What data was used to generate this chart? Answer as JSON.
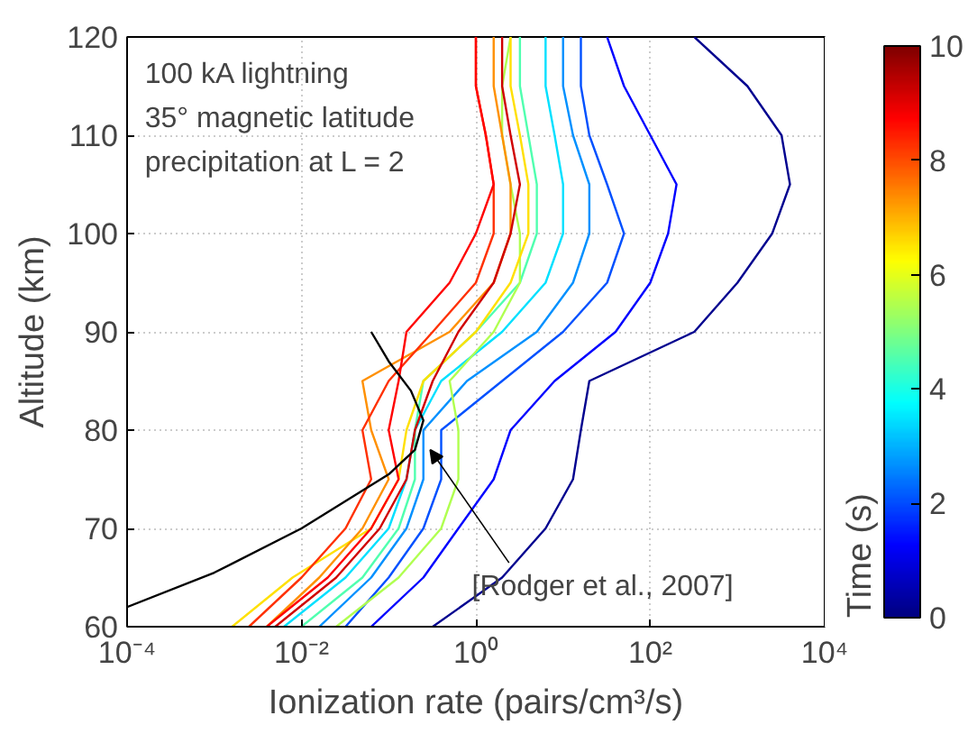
{
  "chart_data": {
    "type": "line",
    "xlabel": "Ionization rate (pairs/cm³/s)",
    "ylabel": "Altitude (km)",
    "clabel": "Time (s)",
    "log": "x",
    "xlim": [
      0.0001,
      10000
    ],
    "ylim": [
      60,
      120
    ],
    "xticks": [
      {
        "value": 0.0001,
        "label": "10⁻⁴"
      },
      {
        "value": 0.01,
        "label": "10⁻²"
      },
      {
        "value": 1,
        "label": "10⁰"
      },
      {
        "value": 100,
        "label": "10²"
      },
      {
        "value": 10000,
        "label": "10⁴"
      }
    ],
    "yticks": [
      60,
      70,
      80,
      90,
      100,
      110,
      120
    ],
    "clim": [
      0,
      10
    ],
    "cticks": [
      0,
      2,
      4,
      6,
      8,
      10
    ],
    "grid": true,
    "line_style": "solid",
    "marker": "none",
    "annotations": [
      "100 kA lightning",
      "35° magnetic latitude",
      "precipitation at L = 2",
      {
        "text": "[Rodger et al., 2007]",
        "x": 0.3,
        "y": 78
      }
    ],
    "series": [
      {
        "color": "#00008f",
        "x": [
          0.32,
          2,
          6.3,
          13,
          16,
          20,
          320,
          1000,
          2500,
          4000,
          3200,
          1300,
          320
        ],
        "values": [
          60,
          65,
          70,
          75,
          80,
          85,
          90,
          95,
          100,
          105,
          110,
          115,
          120
        ]
      },
      {
        "color": "#0000ff",
        "x": [
          0.063,
          0.25,
          0.63,
          1.6,
          2.5,
          8,
          40,
          100,
          160,
          200,
          100,
          50,
          32
        ],
        "values": [
          60,
          65,
          70,
          75,
          80,
          85,
          90,
          95,
          100,
          105,
          110,
          115,
          120
        ]
      },
      {
        "color": "#0050ff",
        "x": [
          0.032,
          0.1,
          0.25,
          0.4,
          0.4,
          2,
          10,
          32,
          50,
          32,
          20,
          16,
          16
        ],
        "values": [
          60,
          65,
          70,
          75,
          80,
          85,
          90,
          95,
          100,
          105,
          110,
          115,
          120
        ]
      },
      {
        "color": "#0090ff",
        "x": [
          0.016,
          0.063,
          0.16,
          0.25,
          0.25,
          0.79,
          5,
          13,
          20,
          20,
          13,
          10,
          10
        ],
        "values": [
          60,
          65,
          70,
          75,
          80,
          85,
          90,
          95,
          100,
          105,
          110,
          115,
          120
        ]
      },
      {
        "color": "#00e0ff",
        "x": [
          0.0063,
          0.032,
          0.1,
          0.16,
          0.2,
          0.4,
          2,
          6.3,
          10,
          10,
          8,
          6.3,
          6.3
        ],
        "values": [
          60,
          65,
          70,
          75,
          80,
          85,
          90,
          95,
          100,
          105,
          110,
          115,
          120
        ]
      },
      {
        "color": "#50ffaf",
        "x": [
          0.01,
          0.05,
          0.13,
          0.2,
          0.2,
          0.25,
          1,
          3.2,
          5,
          5,
          4,
          3.2,
          3.2
        ],
        "values": [
          60,
          65,
          70,
          75,
          80,
          85,
          90,
          95,
          100,
          105,
          110,
          115,
          120
        ]
      },
      {
        "color": "#b0ff50",
        "x": [
          0.025,
          0.13,
          0.4,
          0.63,
          0.63,
          0.5,
          1.6,
          3.2,
          3.2,
          2.5,
          2,
          2,
          2.5
        ],
        "values": [
          60,
          65,
          70,
          75,
          80,
          85,
          90,
          95,
          100,
          105,
          110,
          115,
          120
        ]
      },
      {
        "color": "#ffe000",
        "x": [
          0.0016,
          0.0079,
          0.063,
          0.13,
          0.16,
          0.25,
          1,
          2.5,
          4,
          4,
          3.2,
          2.5,
          2.5
        ],
        "values": [
          60,
          65,
          70,
          75,
          80,
          85,
          90,
          95,
          100,
          105,
          110,
          115,
          120
        ]
      },
      {
        "color": "#ff9000",
        "x": [
          0.004,
          0.016,
          0.05,
          0.1,
          0.063,
          0.05,
          0.5,
          1.6,
          2.5,
          2.5,
          2,
          1.6,
          1.6
        ],
        "values": [
          60,
          65,
          70,
          75,
          80,
          85,
          90,
          95,
          100,
          105,
          110,
          115,
          120
        ]
      },
      {
        "color": "#ff3000",
        "x": [
          0.0025,
          0.01,
          0.032,
          0.063,
          0.05,
          0.1,
          0.32,
          1,
          1.6,
          1.6,
          1.3,
          1,
          1
        ],
        "values": [
          60,
          65,
          70,
          75,
          80,
          85,
          90,
          95,
          100,
          105,
          110,
          115,
          120
        ]
      },
      {
        "color": "#ff0000",
        "x": [
          0.004,
          0.02,
          0.063,
          0.13,
          0.1,
          0.13,
          0.16,
          0.5,
          1,
          1.6,
          1.3,
          1,
          1
        ],
        "values": [
          60,
          65,
          70,
          75,
          80,
          85,
          90,
          95,
          100,
          105,
          110,
          115,
          120
        ]
      },
      {
        "color": "#d00000",
        "x": [
          0.005,
          0.025,
          0.079,
          0.16,
          0.2,
          0.32,
          0.63,
          1.6,
          2.5,
          3.2,
          2.5,
          2,
          2
        ],
        "values": [
          60,
          65,
          70,
          75,
          80,
          85,
          90,
          95,
          100,
          105,
          110,
          115,
          120
        ]
      },
      {
        "color": "#000000",
        "x": [
          0.0001,
          0.001,
          0.01,
          0.1,
          0.2,
          0.25,
          0.18,
          0.1,
          0.063
        ],
        "values": [
          62,
          65.5,
          70,
          75.5,
          78,
          81,
          84,
          87,
          90
        ]
      }
    ]
  }
}
